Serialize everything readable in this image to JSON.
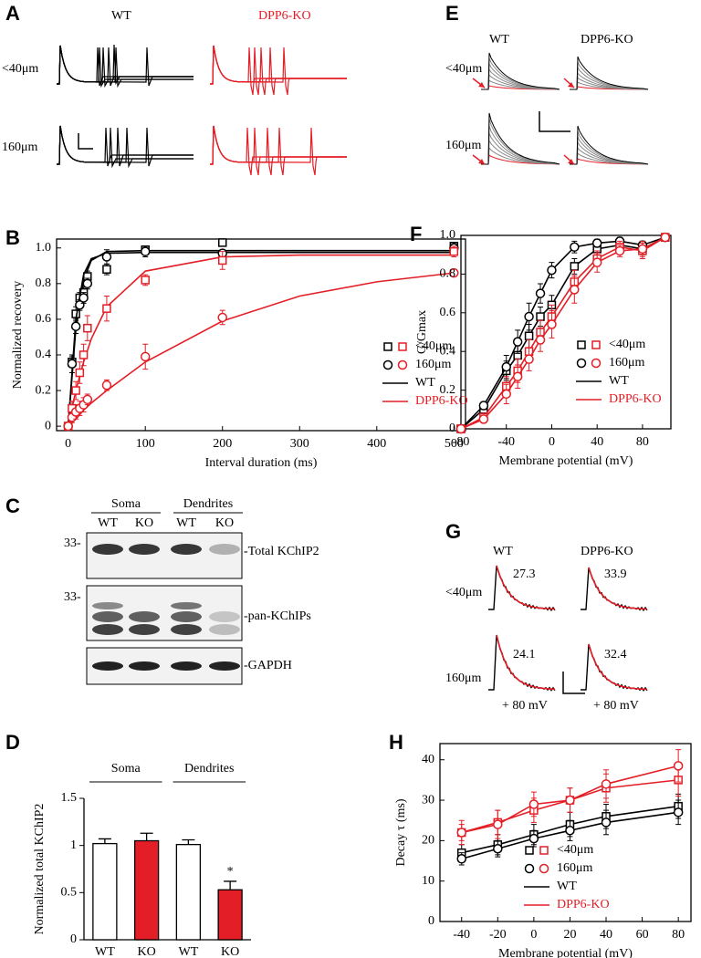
{
  "chart_data": [
    {
      "type": "scatter",
      "label": "B",
      "x_label": "Interval duration (ms)",
      "y_label": "Normalized recovery",
      "x": [
        0,
        5,
        10,
        15,
        20,
        25,
        50,
        100,
        200,
        500
      ],
      "xlim": [
        -15,
        515
      ],
      "xticks": [
        0,
        100,
        200,
        300,
        400,
        500
      ],
      "ylim": [
        -0.025,
        1.05
      ],
      "yticks": [
        0,
        0.2,
        0.4,
        0.6,
        0.8,
        {
          "value": 1,
          "label": "1.0"
        }
      ],
      "fit_x": [
        0,
        10,
        20,
        30,
        50,
        100,
        200,
        300,
        400,
        500
      ],
      "series": [
        {
          "marker": "square",
          "color": "#000000",
          "values": [
            0,
            0.36,
            0.63,
            0.72,
            0.75,
            0.84,
            0.88,
            0.99,
            1.03,
            1.01
          ],
          "errors": [
            0,
            0.03,
            0.04,
            0.03,
            0.03,
            0.03,
            0.03,
            0.02,
            0.01,
            0.02
          ],
          "fit": [
            0,
            0.55,
            0.82,
            0.93,
            0.98,
            0.985,
            0.985,
            0.985,
            0.985,
            0.985
          ]
        },
        {
          "marker": "circle",
          "color": "#000000",
          "values": [
            0,
            0.35,
            0.56,
            0.68,
            0.72,
            0.8,
            0.95,
            0.98,
            0.97,
            1.0
          ],
          "errors": [
            0,
            0.05,
            0.04,
            0.03,
            0.03,
            0.03,
            0.04,
            0.03,
            0.01,
            0.03
          ],
          "fit": [
            0,
            0.6,
            0.85,
            0.94,
            0.97,
            0.975,
            0.975,
            0.975,
            0.975,
            0.975
          ]
        },
        {
          "marker": "square",
          "color": "#e41e26",
          "values": [
            0,
            0.1,
            0.2,
            0.3,
            0.4,
            0.55,
            0.66,
            0.82,
            0.93,
            0.98
          ],
          "errors": [
            0,
            0.04,
            0.05,
            0.06,
            0.06,
            0.07,
            0.07,
            0.03,
            0.05,
            0.03
          ],
          "fit": [
            0,
            0.2,
            0.36,
            0.49,
            0.67,
            0.87,
            0.95,
            0.96,
            0.96,
            0.96
          ]
        },
        {
          "marker": "circle",
          "color": "#e41e26",
          "values": [
            0,
            0.05,
            0.08,
            0.1,
            0.12,
            0.15,
            0.23,
            0.39,
            0.61,
            0.86
          ],
          "errors": [
            0,
            0.03,
            0.04,
            0.04,
            0.04,
            0.03,
            0.03,
            0.07,
            0.04,
            0.02
          ],
          "fit": [
            0,
            0.04,
            0.09,
            0.13,
            0.2,
            0.36,
            0.59,
            0.73,
            0.81,
            0.86
          ]
        }
      ],
      "legend": [
        {
          "label": "<40μm",
          "marker": "square"
        },
        {
          "label": "160μm",
          "marker": "circle"
        },
        {
          "label": "WT",
          "color": "#000000"
        },
        {
          "label": "DPP6-KO",
          "color": "#e41e26"
        }
      ]
    },
    {
      "type": "scatter",
      "label": "F",
      "x_label": "Membrane potential (mV)",
      "y_label": "G/Gmax",
      "x": [
        -80,
        -60,
        -40,
        -30,
        -20,
        -10,
        0,
        20,
        40,
        60,
        80,
        100
      ],
      "xlim": [
        -80,
        105
      ],
      "xticks": [
        -80,
        -40,
        0,
        40,
        80
      ],
      "ylim": [
        0,
        1
      ],
      "yticks": [
        0,
        0.2,
        0.4,
        0.6,
        0.8,
        {
          "value": 1,
          "label": "1.0"
        }
      ],
      "series": [
        {
          "marker": "square",
          "color": "#000000",
          "values": [
            0,
            0.1,
            0.3,
            0.38,
            0.48,
            0.58,
            0.64,
            0.84,
            0.93,
            0.95,
            0.93,
            0.99
          ],
          "errors": [
            0,
            0.02,
            0.05,
            0.05,
            0.06,
            0.05,
            0.05,
            0.04,
            0.03,
            0.02,
            0.03,
            0.01
          ]
        },
        {
          "marker": "circle",
          "color": "#000000",
          "values": [
            0,
            0.12,
            0.32,
            0.45,
            0.58,
            0.7,
            0.82,
            0.94,
            0.96,
            0.97,
            0.95,
            0.99
          ],
          "errors": [
            0,
            0.02,
            0.06,
            0.06,
            0.07,
            0.05,
            0.04,
            0.03,
            0.02,
            0.02,
            0.02,
            0.01
          ]
        },
        {
          "marker": "square",
          "color": "#e41e26",
          "values": [
            0,
            0.06,
            0.22,
            0.3,
            0.4,
            0.5,
            0.58,
            0.76,
            0.88,
            0.94,
            0.92,
            0.99
          ],
          "errors": [
            0,
            0.02,
            0.05,
            0.06,
            0.06,
            0.06,
            0.06,
            0.06,
            0.04,
            0.03,
            0.04,
            0.01
          ]
        },
        {
          "marker": "circle",
          "color": "#e41e26",
          "values": [
            0,
            0.05,
            0.18,
            0.27,
            0.36,
            0.46,
            0.54,
            0.72,
            0.86,
            0.92,
            0.93,
            0.99
          ],
          "errors": [
            0,
            0.02,
            0.05,
            0.06,
            0.06,
            0.06,
            0.07,
            0.07,
            0.05,
            0.03,
            0.04,
            0.01
          ]
        }
      ],
      "legend": [
        {
          "label": "<40μm",
          "marker": "square"
        },
        {
          "label": "160μm",
          "marker": "circle"
        },
        {
          "label": "WT",
          "color": "#000000"
        },
        {
          "label": "DPP6-KO",
          "color": "#e41e26"
        }
      ]
    },
    {
      "type": "bar",
      "label": "D",
      "y_label": "Normalized total KChIP2",
      "groups": [
        "Soma",
        "Dendrites"
      ],
      "categories": [
        "WT",
        "KO",
        "WT",
        "KO"
      ],
      "values": [
        1.02,
        1.05,
        1.01,
        0.53
      ],
      "errors": [
        0.05,
        0.08,
        0.05,
        0.09
      ],
      "colors": [
        "#ffffff",
        "#e41e26",
        "#ffffff",
        "#e41e26"
      ],
      "annotation": "*",
      "ylim": [
        0,
        1.5
      ],
      "yticks": [
        0,
        0.5,
        1,
        1.5
      ]
    },
    {
      "type": "scatter",
      "label": "H",
      "x_label": "Membrane potential (mV)",
      "y_label": "Decay τ (ms)",
      "x": [
        -40,
        -20,
        0,
        20,
        40,
        80
      ],
      "xlim": [
        -52,
        87
      ],
      "xticks": [
        -40,
        -20,
        0,
        20,
        40,
        60,
        80
      ],
      "ylim": [
        0,
        44
      ],
      "yticks": [
        0,
        10,
        20,
        30,
        40
      ],
      "series": [
        {
          "marker": "square",
          "color": "#000000",
          "values": [
            17,
            19,
            21.5,
            24,
            26,
            28.5
          ],
          "errors": [
            2,
            2.5,
            2.5,
            3,
            3,
            3
          ]
        },
        {
          "marker": "circle",
          "color": "#000000",
          "values": [
            15.5,
            18,
            20.5,
            22.5,
            24.5,
            27
          ],
          "errors": [
            1.5,
            2,
            2,
            2.5,
            3,
            3
          ]
        },
        {
          "marker": "square",
          "color": "#e41e26",
          "values": [
            22,
            24.5,
            27.5,
            30,
            33,
            35
          ],
          "errors": [
            3,
            3,
            3,
            3,
            3.5,
            4
          ]
        },
        {
          "marker": "circle",
          "color": "#e41e26",
          "values": [
            22,
            24,
            29,
            30,
            34,
            38.5
          ],
          "errors": [
            2,
            3.5,
            3,
            3,
            3.5,
            4
          ]
        }
      ],
      "legend": [
        {
          "label": "<40μm",
          "marker": "square"
        },
        {
          "label": "160μm",
          "marker": "circle"
        },
        {
          "label": "WT",
          "color": "#000000"
        },
        {
          "label": "DPP6-KO",
          "color": "#e41e26"
        }
      ]
    }
  ],
  "panels": {
    "A": {
      "label": "A",
      "columns": [
        "WT",
        "DPP6-KO"
      ],
      "rows": [
        "<40μm",
        "160μm"
      ]
    },
    "C": {
      "label": "C",
      "groups": [
        "Soma",
        "Dendrites"
      ],
      "lanes": [
        "WT",
        "KO",
        "WT",
        "KO"
      ],
      "markers": [
        "33-",
        "33-"
      ],
      "blots": [
        "-Total KChIP2",
        "-pan-KChIPs",
        "-GAPDH"
      ]
    },
    "E": {
      "label": "E",
      "columns": [
        "WT",
        "DPP6-KO"
      ],
      "rows": [
        "<40μm",
        "160μm"
      ]
    },
    "G": {
      "label": "G",
      "columns": [
        "WT",
        "DPP6-KO"
      ],
      "rows": [
        "<40μm",
        "160μm"
      ],
      "taus": [
        27.3,
        33.9,
        24.1,
        32.4
      ],
      "voltage": [
        "+ 80 mV",
        "+ 80 mV"
      ]
    }
  }
}
